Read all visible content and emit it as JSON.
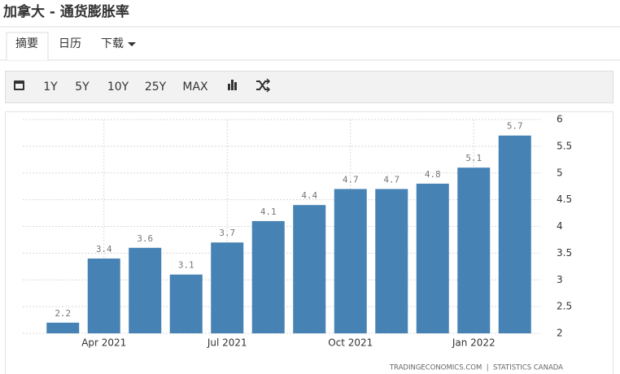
{
  "header": {
    "title": "加拿大 - 通货膨胀率"
  },
  "tabs": [
    "摘要",
    "日历",
    "下载"
  ],
  "toolbar": [
    "1Y",
    "5Y",
    "10Y",
    "25Y",
    "MAX"
  ],
  "chart_data": {
    "type": "bar",
    "categories": [
      null,
      "Apr 2021",
      null,
      null,
      "Jul 2021",
      null,
      null,
      "Oct 2021",
      null,
      null,
      "Jan 2022",
      null
    ],
    "values": [
      2.2,
      3.4,
      3.6,
      3.1,
      3.7,
      4.1,
      4.4,
      4.7,
      4.7,
      4.8,
      5.1,
      5.7
    ],
    "color": "#4682b4",
    "ylim": [
      2,
      6
    ],
    "yticks": [
      2,
      2.5,
      3,
      3.5,
      4,
      4.5,
      5,
      5.5,
      6
    ],
    "grid": true,
    "source": "TRADINGECONOMICS.COM  |  STATISTICS CANADA"
  }
}
